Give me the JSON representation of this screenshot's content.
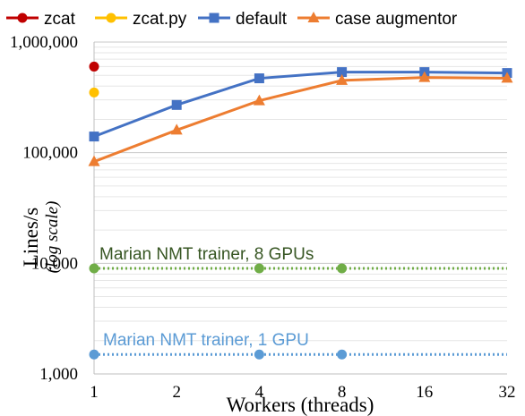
{
  "chart_data": {
    "type": "line",
    "yscale": "log",
    "xlabel": "Workers (threads)",
    "ylabel": "Lines/s",
    "ylabel_sub": "(log scale)",
    "x_categories": [
      "1",
      "2",
      "4",
      "8",
      "16",
      "32"
    ],
    "y_ticks": [
      1000,
      10000,
      100000,
      1000000
    ],
    "y_tick_labels": [
      "1,000",
      "10,000",
      "100,000",
      "1,000,000"
    ],
    "ylim": [
      1000,
      1000000
    ],
    "grid": "horizontal minor",
    "legend_position": "top",
    "series": [
      {
        "name": "zcat",
        "color": "#c00000",
        "marker": "circle",
        "style": "solid",
        "points": [
          {
            "x": "1",
            "y": 600000
          }
        ]
      },
      {
        "name": "zcat.py",
        "color": "#ffc000",
        "marker": "circle",
        "style": "solid",
        "points": [
          {
            "x": "1",
            "y": 350000
          }
        ]
      },
      {
        "name": "default",
        "color": "#4472c4",
        "marker": "square",
        "style": "solid",
        "points": [
          {
            "x": "1",
            "y": 140000
          },
          {
            "x": "2",
            "y": 270000
          },
          {
            "x": "4",
            "y": 470000
          },
          {
            "x": "8",
            "y": 535000
          },
          {
            "x": "16",
            "y": 535000
          },
          {
            "x": "32",
            "y": 525000
          }
        ]
      },
      {
        "name": "case augmentor",
        "color": "#ed7d31",
        "marker": "triangle",
        "style": "solid",
        "points": [
          {
            "x": "1",
            "y": 83000
          },
          {
            "x": "2",
            "y": 160000
          },
          {
            "x": "4",
            "y": 295000
          },
          {
            "x": "8",
            "y": 450000
          },
          {
            "x": "16",
            "y": 478000
          },
          {
            "x": "32",
            "y": 472000
          }
        ]
      }
    ],
    "reference_lines": [
      {
        "label": "Marian NMT trainer, 8 GPUs",
        "color": "#70ad47",
        "style": "dotted",
        "y": 9000,
        "marker_x": [
          "1",
          "4",
          "8"
        ]
      },
      {
        "label": "Marian NMT trainer, 1 GPU",
        "color": "#5b9bd5",
        "style": "dotted",
        "y": 1500,
        "marker_x": [
          "1",
          "4",
          "8"
        ]
      }
    ]
  }
}
